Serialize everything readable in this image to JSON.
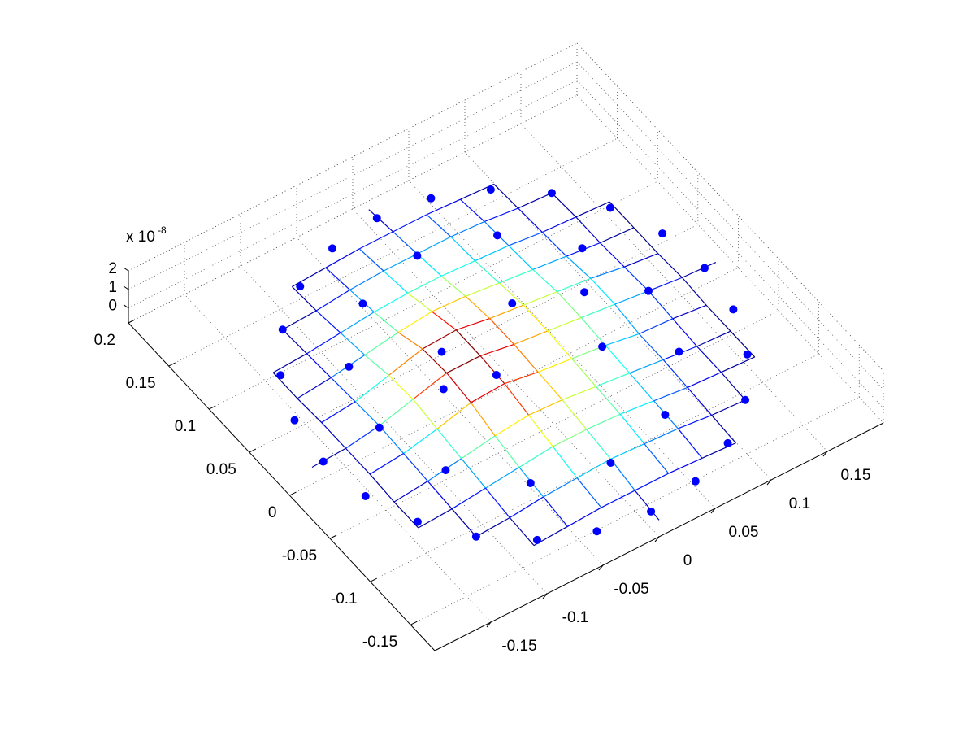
{
  "chart_data": {
    "type": "mesh3d",
    "xlim": [
      -0.2,
      0.2
    ],
    "ylim": [
      -0.18,
      0.2
    ],
    "zlim": [
      -0.8,
      2
    ],
    "xticks": [
      -0.15,
      -0.1,
      -0.05,
      0,
      0.05,
      0.1,
      0.15
    ],
    "yticks": [
      -0.15,
      -0.1,
      -0.05,
      0,
      0.05,
      0.1,
      0.15,
      0.2
    ],
    "zticks": [
      0,
      1,
      2
    ],
    "z_multiplier": "x 10",
    "z_exponent": "-8",
    "grid": true,
    "x": [
      -0.18,
      -0.15,
      -0.12,
      -0.09,
      -0.06,
      -0.03,
      0,
      0.03,
      0.06,
      0.09,
      0.12,
      0.15,
      0.18
    ],
    "y": [
      -0.18,
      -0.15,
      -0.12,
      -0.09,
      -0.06,
      -0.03,
      0,
      0.03,
      0.06,
      0.09,
      0.12,
      0.15,
      0.18
    ],
    "z": [
      [
        null,
        null,
        null,
        null,
        null,
        null,
        0.1,
        null,
        null,
        null,
        null,
        null,
        null
      ],
      [
        null,
        null,
        null,
        0.1,
        0.2,
        0.3,
        0.3,
        0.3,
        0.2,
        0.1,
        null,
        null,
        null
      ],
      [
        null,
        null,
        0.1,
        0.2,
        0.4,
        0.5,
        0.6,
        0.5,
        0.4,
        0.2,
        0.1,
        null,
        null
      ],
      [
        null,
        0.1,
        0.2,
        0.4,
        0.6,
        0.8,
        0.8,
        0.7,
        0.5,
        0.3,
        0.2,
        0.1,
        null
      ],
      [
        null,
        0.1,
        0.3,
        0.6,
        0.9,
        1.1,
        1.0,
        0.8,
        0.6,
        0.4,
        0.2,
        0.1,
        null
      ],
      [
        null,
        0.2,
        0.4,
        0.8,
        1.3,
        1.4,
        1.1,
        0.9,
        0.7,
        0.4,
        0.3,
        0.1,
        null
      ],
      [
        0.1,
        0.2,
        0.5,
        1.0,
        1.5,
        1.5,
        1.2,
        1.0,
        0.8,
        0.6,
        0.4,
        0.2,
        0.1
      ],
      [
        null,
        0.2,
        0.4,
        0.9,
        1.4,
        1.5,
        1.2,
        1.0,
        0.8,
        0.6,
        0.3,
        0.1,
        null
      ],
      [
        null,
        0.1,
        0.3,
        0.6,
        0.9,
        1.1,
        1.0,
        0.8,
        0.6,
        0.4,
        0.2,
        0.1,
        null
      ],
      [
        null,
        0.1,
        0.2,
        0.4,
        0.6,
        0.7,
        0.7,
        0.6,
        0.5,
        0.3,
        0.2,
        0.1,
        null
      ],
      [
        null,
        null,
        0.1,
        0.2,
        0.4,
        0.5,
        0.5,
        0.5,
        0.4,
        0.2,
        0.1,
        null,
        null
      ],
      [
        null,
        null,
        null,
        0.1,
        0.2,
        0.3,
        0.3,
        0.3,
        0.2,
        0.1,
        null,
        null,
        null
      ],
      [
        null,
        null,
        null,
        null,
        null,
        null,
        0.1,
        null,
        null,
        null,
        null,
        null,
        null
      ]
    ],
    "points": {
      "color": "#0000ff",
      "x": [
        0.17,
        0.164,
        0.147,
        0.12,
        0.085,
        0.044,
        0,
        -0.044,
        -0.085,
        -0.12,
        -0.147,
        -0.164,
        -0.17,
        -0.164,
        -0.147,
        -0.12,
        -0.085,
        -0.044,
        0,
        0.044,
        0.085,
        0.12,
        0.147,
        0.164,
        0.12,
        0.104,
        0.06,
        0,
        -0.06,
        -0.104,
        -0.12,
        -0.104,
        -0.06,
        0,
        0.06,
        0.104,
        -0.05,
        -0.03,
        -0.07,
        0.02,
        0.07,
        0.05
      ],
      "y": [
        0,
        0.044,
        0.085,
        0.12,
        0.147,
        0.164,
        0.17,
        0.164,
        0.147,
        0.12,
        0.085,
        0.044,
        0,
        -0.044,
        -0.085,
        -0.12,
        -0.147,
        -0.164,
        -0.17,
        -0.164,
        -0.147,
        -0.12,
        -0.085,
        -0.044,
        0,
        0.06,
        0.104,
        0.12,
        0.104,
        0.06,
        0,
        -0.06,
        -0.104,
        -0.12,
        -0.104,
        -0.06,
        0.02,
        -0.02,
        -0.01,
        0.03,
        0.01,
        -0.04
      ],
      "z": [
        0.1,
        0.1,
        0.1,
        0.1,
        0.1,
        0.1,
        0.1,
        0.1,
        0.1,
        0.1,
        0.1,
        0.1,
        0.1,
        0.1,
        0.1,
        0.1,
        0.1,
        0.1,
        0.1,
        0.1,
        0.1,
        0.1,
        0.1,
        0.1,
        0.4,
        0.4,
        0.4,
        0.4,
        0.4,
        0.4,
        0.4,
        0.4,
        0.4,
        0.4,
        0.4,
        0.4,
        1.4,
        1.4,
        1.4,
        1.4,
        1.4,
        1.4
      ]
    }
  }
}
